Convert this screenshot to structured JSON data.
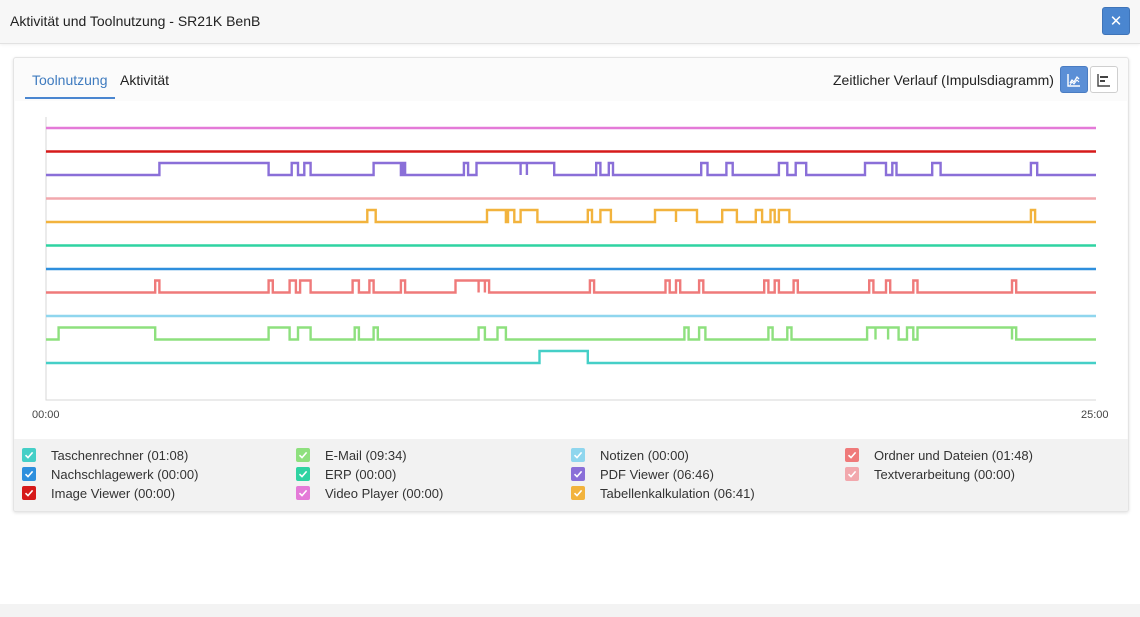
{
  "window": {
    "title": "Aktivität und Toolnutzung - SR21K BenB"
  },
  "tabs": [
    {
      "label": "Toolnutzung",
      "active": true
    },
    {
      "label": "Aktivität",
      "active": false
    }
  ],
  "view": {
    "label": "Zeitlicher Verlauf (Impulsdiagramm)",
    "active_button": "impulse"
  },
  "axis": {
    "start": "00:00",
    "end": "25:00"
  },
  "legend": [
    {
      "label": "Taschenrechner (01:08)",
      "color": "#45cfc7"
    },
    {
      "label": "E-Mail (09:34)",
      "color": "#8ee07e"
    },
    {
      "label": "Notizen (00:00)",
      "color": "#8fd6ee"
    },
    {
      "label": "Ordner und Dateien (01:48)",
      "color": "#ef7a7a"
    },
    {
      "label": "Nachschlagewerk (00:00)",
      "color": "#2e8fdd"
    },
    {
      "label": "ERP (00:00)",
      "color": "#2fd3a2"
    },
    {
      "label": "PDF Viewer (06:46)",
      "color": "#8a6fd8"
    },
    {
      "label": "Textverarbeitung (00:00)",
      "color": "#f2a8ad"
    },
    {
      "label": "Image Viewer (00:00)",
      "color": "#d61a1a"
    },
    {
      "label": "Video Player (00:00)",
      "color": "#e47ad8"
    },
    {
      "label": "Tabellenkalkulation (06:41)",
      "color": "#f2b33d"
    }
  ],
  "chart_data": {
    "type": "line",
    "x_range": [
      "00:00",
      "25:00"
    ],
    "x_domain_minutes": [
      0,
      25
    ],
    "series": [
      {
        "name": "Video Player",
        "color": "#e47ad8",
        "active": []
      },
      {
        "name": "Image Viewer",
        "color": "#d61a1a",
        "active": []
      },
      {
        "name": "PDF Viewer",
        "color": "#8a6fd8",
        "active": [
          [
            2.7,
            5.3
          ],
          [
            5.85,
            6.0
          ],
          [
            6.15,
            6.3
          ],
          [
            7.8,
            8.5
          ],
          [
            8.45,
            8.55
          ],
          [
            9.95,
            10.05
          ],
          [
            10.25,
            11.3
          ],
          [
            11.3,
            11.45
          ],
          [
            11.45,
            12.1
          ],
          [
            13.1,
            13.2
          ],
          [
            13.4,
            13.5
          ],
          [
            15.6,
            15.75
          ],
          [
            16.2,
            16.35
          ],
          [
            17.45,
            17.65
          ],
          [
            17.85,
            18.1
          ],
          [
            19.5,
            20.0
          ],
          [
            21.1,
            21.3
          ],
          [
            20.15,
            20.25
          ],
          [
            23.45,
            23.6
          ]
        ]
      },
      {
        "name": "Textverarbeitung",
        "color": "#f2a8ad",
        "active": []
      },
      {
        "name": "Tabellenkalkulation",
        "color": "#f2b33d",
        "active": [
          [
            7.65,
            7.85
          ],
          [
            10.5,
            10.95
          ],
          [
            11.0,
            11.15
          ],
          [
            11.3,
            11.7
          ],
          [
            12.9,
            13.0
          ],
          [
            13.2,
            13.45
          ],
          [
            14.5,
            15.0
          ],
          [
            15.0,
            15.5
          ],
          [
            16.1,
            16.45
          ],
          [
            16.9,
            17.05
          ],
          [
            17.25,
            17.35
          ],
          [
            17.45,
            17.7
          ],
          [
            23.45,
            23.55
          ]
        ]
      },
      {
        "name": "ERP",
        "color": "#2fd3a2",
        "active": []
      },
      {
        "name": "Nachschlagewerk",
        "color": "#2e8fdd",
        "active": []
      },
      {
        "name": "Ordner und Dateien",
        "color": "#ef7a7a",
        "active": [
          [
            2.6,
            2.7
          ],
          [
            5.3,
            5.4
          ],
          [
            5.8,
            5.95
          ],
          [
            6.05,
            6.3
          ],
          [
            7.3,
            7.45
          ],
          [
            7.7,
            7.8
          ],
          [
            8.45,
            8.55
          ],
          [
            9.75,
            10.3
          ],
          [
            10.3,
            10.45
          ],
          [
            10.45,
            10.55
          ],
          [
            12.95,
            13.05
          ],
          [
            15.0,
            15.1
          ],
          [
            14.75,
            14.85
          ],
          [
            15.55,
            15.65
          ],
          [
            17.1,
            17.2
          ],
          [
            17.35,
            17.45
          ],
          [
            17.8,
            17.9
          ],
          [
            19.6,
            19.7
          ],
          [
            20.0,
            20.1
          ],
          [
            20.65,
            20.75
          ],
          [
            23.0,
            23.1
          ]
        ]
      },
      {
        "name": "Notizen",
        "color": "#8fd6ee",
        "active": []
      },
      {
        "name": "E-Mail",
        "color": "#8ee07e",
        "active": [
          [
            0.3,
            2.6
          ],
          [
            5.3,
            5.8
          ],
          [
            6.0,
            6.3
          ],
          [
            7.35,
            7.45
          ],
          [
            7.8,
            7.9
          ],
          [
            10.3,
            10.45
          ],
          [
            10.75,
            10.95
          ],
          [
            15.2,
            15.3
          ],
          [
            15.55,
            15.7
          ],
          [
            17.2,
            17.3
          ],
          [
            17.65,
            17.75
          ],
          [
            19.55,
            19.75
          ],
          [
            19.75,
            20.05
          ],
          [
            20.05,
            20.3
          ],
          [
            20.5,
            20.65
          ],
          [
            20.75,
            23.0
          ],
          [
            23.0,
            23.1
          ]
        ]
      },
      {
        "name": "Taschenrechner",
        "color": "#45cfc7",
        "active": [
          [
            11.75,
            12.9
          ]
        ]
      }
    ]
  }
}
